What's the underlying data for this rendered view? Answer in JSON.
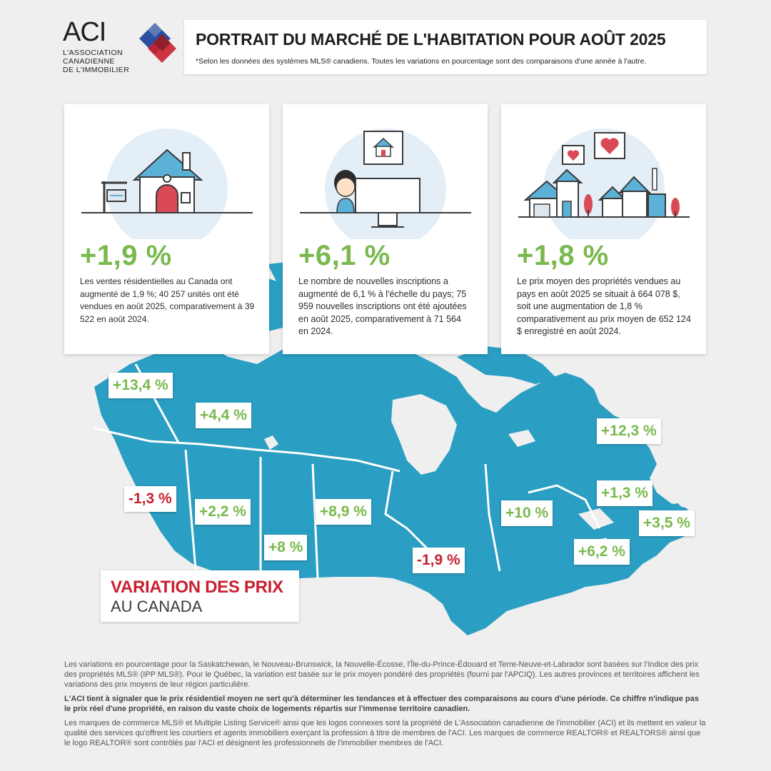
{
  "logo": {
    "brand": "ACI",
    "line1": "L'ASSOCIATION",
    "line2": "CANADIENNE",
    "line3": "DE L'IMMOBILIER",
    "colors": {
      "blue": "#2a4fa0",
      "red": "#c8202f",
      "dark_red": "#8f1f2a"
    }
  },
  "header": {
    "title": "PORTRAIT DU MARCHÉ DE L'HABITATION POUR AOÛT 2025",
    "subtitle": "*Selon les données des systèmes MLS® canadiens. Toutes les variations en pourcentage sont des comparaisons d'une année à l'autre."
  },
  "cards": [
    {
      "icon": "house-for-sale-icon",
      "value": "+1,9 %",
      "text": "Les ventes résidentielles au Canada ont augmenté de 1,9 %; 40 257 unités ont été vendues en août 2025, comparativement à 39 522 en août 2024."
    },
    {
      "icon": "person-computer-listing-icon",
      "value": "+6,1 %",
      "text": "Le nombre de nouvelles inscriptions a augmenté de 6,1 % à l'échelle du pays; 75 959 nouvelles inscriptions ont été ajoutées en août 2025, comparativement à 71 564 en 2024."
    },
    {
      "icon": "neighborhood-hearts-icon",
      "value": "+1,8 %",
      "text": "Le prix moyen des propriétés vendues au pays en août 2025 se situait à 664 078 $, soit une augmentation de 1,8 % comparativement au prix moyen de 652 124 $ enregistré en août 2024."
    }
  ],
  "map": {
    "color": "#2b9ec3",
    "labels": [
      {
        "region": "yukon",
        "value": "+13,4 %",
        "trend": "pos"
      },
      {
        "region": "northwest-territories",
        "value": "+4,4 %",
        "trend": "pos"
      },
      {
        "region": "british-columbia",
        "value": "-1,3 %",
        "trend": "neg"
      },
      {
        "region": "alberta",
        "value": "+2,2 %",
        "trend": "pos"
      },
      {
        "region": "saskatchewan",
        "value": "+8 %",
        "trend": "pos"
      },
      {
        "region": "manitoba",
        "value": "+8,9 %",
        "trend": "pos"
      },
      {
        "region": "ontario",
        "value": "-1,9 %",
        "trend": "neg"
      },
      {
        "region": "quebec",
        "value": "+10 %",
        "trend": "pos"
      },
      {
        "region": "newfoundland-labrador",
        "value": "+12,3 %",
        "trend": "pos"
      },
      {
        "region": "prince-edward-island",
        "value": "+1,3 %",
        "trend": "pos"
      },
      {
        "region": "nova-scotia",
        "value": "+3,5 %",
        "trend": "pos"
      },
      {
        "region": "new-brunswick",
        "value": "+6,2 %",
        "trend": "pos"
      }
    ]
  },
  "legend_box": {
    "line1": "VARIATION DES PRIX",
    "line2": "AU CANADA"
  },
  "notes": {
    "p1": "Les variations en pourcentage pour la Saskatchewan, le Nouveau-Brunswick, la Nouvelle-Écosse, l'Île-du-Prince-Édouard et Terre-Neuve-et-Labrador sont basées sur l'Indice des prix des propriétés MLS® (IPP MLS®). Pour le Québec, la variation est basée sur le prix moyen pondéré des propriétés (fourni par l'APCIQ). Les autres provinces et territoires affichent les variations des prix moyens de leur région particulière.",
    "p2": "L'ACI tient à signaler que le prix résidentiel moyen ne sert qu'à déterminer les tendances et à effectuer des comparaisons au cours d'une période. Ce chiffre n'indique pas le prix réel d'une propriété, en raison du vaste choix de logements répartis sur l'immense territoire canadien.",
    "p3": "Les marques de commerce MLS® et Multiple Listing Service® ainsi que les logos connexes sont la propriété de L'Association canadienne de l'immobilier (ACI) et ils mettent en valeur la qualité des services qu'offrent les courtiers et agents immobiliers exerçant la profession à titre de membres de l'ACI. Les marques de commerce REALTOR® et REALTORS® ainsi que le logo REALTOR® sont contrôlés par l'ACI et désignent les professionnels de l'immobilier membres de l'ACI."
  }
}
